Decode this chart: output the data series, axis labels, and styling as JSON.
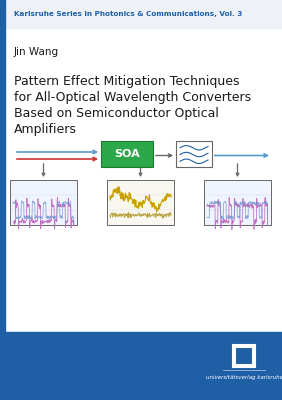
{
  "series_text": "Karlsruhe Series in Photonics & Communications, Vol. 3",
  "author": "Jin Wang",
  "title_lines": [
    "Pattern Effect Mitigation Techniques",
    "for All-Optical Wavelength Converters",
    "Based on Semiconductor Optical",
    "Amplifiers"
  ],
  "publisher": "universitätsverlag karlsruhe",
  "bg_color_white": "#ffffff",
  "bg_color_blue": "#1e5fa6",
  "bg_color_light": "#eef2f7",
  "series_color": "#1e5fa6",
  "title_color": "#1a1a1a",
  "author_color": "#1a1a1a",
  "left_bar_color": "#1e5fa6",
  "soa_box_color": "#2ca84a",
  "arrow_blue": "#5599cc",
  "arrow_red": "#cc3333",
  "arrow_gray": "#666666",
  "filter_wave_color": "#1e5fa6",
  "box1_color1": "#c070c0",
  "box1_color2": "#7090d0",
  "box2_color1": "#c8a000",
  "box2_color2": "#a08000",
  "box3_color1": "#c070c0",
  "box3_color2": "#7090d0"
}
